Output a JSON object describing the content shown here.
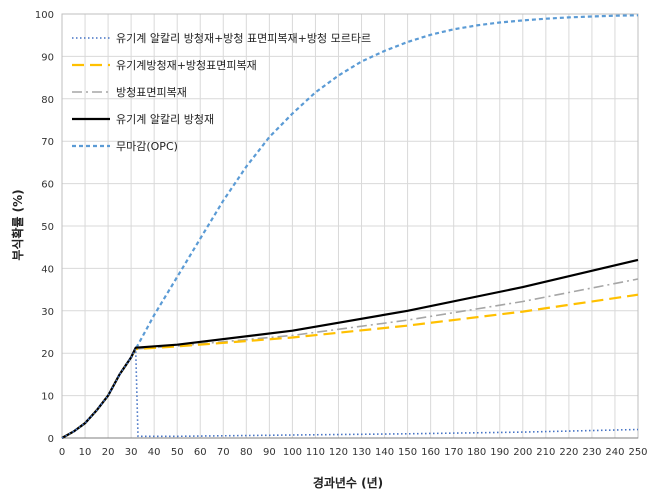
{
  "chart_data": {
    "type": "line",
    "xlabel": "경과년수 (년)",
    "ylabel": "부식확률 (%)",
    "xlim": [
      0,
      250
    ],
    "ylim": [
      0,
      100
    ],
    "x_ticks": [
      0,
      10,
      20,
      30,
      40,
      50,
      60,
      70,
      80,
      90,
      100,
      110,
      120,
      130,
      140,
      150,
      160,
      170,
      180,
      190,
      200,
      210,
      220,
      230,
      240,
      250
    ],
    "y_ticks": [
      0,
      10,
      20,
      30,
      40,
      50,
      60,
      70,
      80,
      90,
      100
    ],
    "grid": true,
    "legend_position": "top-left",
    "series": [
      {
        "name": "유기계 알칼리 방청재+방청 표면피복재+방청 모르타르",
        "color": "#4472c4",
        "style": "dotted",
        "x": [
          0,
          5,
          10,
          15,
          20,
          25,
          30,
          32,
          33,
          50,
          100,
          150,
          200,
          250
        ],
        "y": [
          0,
          1.5,
          3.5,
          6.5,
          10,
          15,
          19,
          21,
          0.4,
          0.4,
          0.7,
          1,
          1.4,
          2
        ]
      },
      {
        "name": "유기계방청재+방청표면피복재",
        "color": "#ffc000",
        "style": "dashed",
        "x": [
          0,
          5,
          10,
          15,
          20,
          25,
          30,
          32,
          50,
          100,
          150,
          200,
          250
        ],
        "y": [
          0,
          1.5,
          3.5,
          6.5,
          10,
          15,
          19,
          21,
          21.6,
          23.7,
          26.5,
          29.8,
          33.8
        ]
      },
      {
        "name": "방청표면피복재",
        "color": "#a6a6a6",
        "style": "dashdot",
        "x": [
          0,
          5,
          10,
          15,
          20,
          25,
          30,
          32,
          50,
          100,
          150,
          200,
          250
        ],
        "y": [
          0,
          1.5,
          3.5,
          6.5,
          10,
          15,
          19,
          21,
          21.7,
          24.2,
          27.8,
          32.2,
          37.5
        ]
      },
      {
        "name": "유기계 알칼리 방청재",
        "color": "#000000",
        "style": "solid",
        "x": [
          0,
          5,
          10,
          15,
          20,
          25,
          30,
          32,
          50,
          100,
          150,
          200,
          250
        ],
        "y": [
          0,
          1.5,
          3.5,
          6.5,
          10,
          15,
          19,
          21.3,
          22,
          25.3,
          30,
          35.6,
          42
        ]
      },
      {
        "name": "무마감(OPC)",
        "color": "#5b9bd5",
        "style": "shortdash",
        "x": [
          0,
          5,
          10,
          15,
          20,
          25,
          30,
          32,
          40,
          50,
          60,
          70,
          80,
          90,
          100,
          110,
          120,
          130,
          140,
          150,
          160,
          170,
          180,
          190,
          200,
          210,
          220,
          230,
          240,
          250
        ],
        "y": [
          0,
          1.5,
          3.5,
          6.5,
          10,
          15,
          19,
          21,
          29,
          38,
          47,
          56,
          64,
          71,
          76.5,
          81.5,
          85.5,
          88.8,
          91.3,
          93.4,
          95.1,
          96.4,
          97.3,
          98,
          98.5,
          98.9,
          99.2,
          99.4,
          99.6,
          99.7
        ]
      }
    ]
  }
}
